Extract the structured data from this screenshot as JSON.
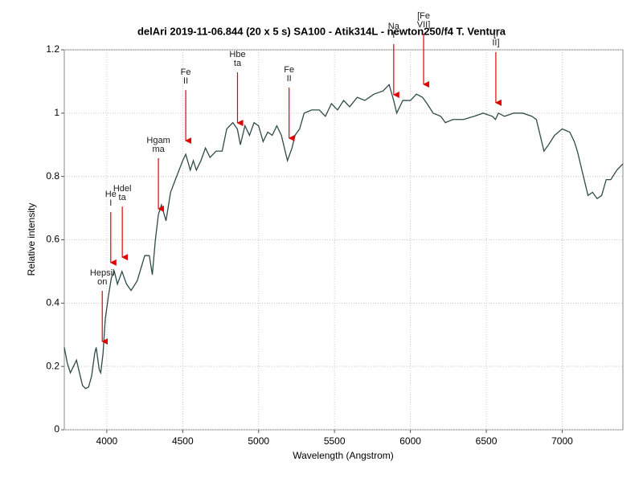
{
  "chart_data": {
    "type": "line",
    "title": "delAri   2019-11-06.844   (20 x 5 s)  SA100 - Atik314L - newton250/f4 T. Ventura",
    "x_label": "Wavelength (Angstrom)",
    "y_label": "Relative intensity",
    "xlim": [
      3720,
      7400
    ],
    "ylim": [
      0,
      1.2
    ],
    "xticks": [
      4000,
      4500,
      5000,
      5500,
      6000,
      6500,
      7000
    ],
    "yticks": [
      0,
      0.2,
      0.4,
      0.6,
      0.8,
      1,
      1.2
    ],
    "grid": true,
    "series": [
      {
        "color": "#2f4a48",
        "x": [
          3720,
          3740,
          3760,
          3780,
          3800,
          3820,
          3840,
          3860,
          3880,
          3900,
          3920,
          3930,
          3950,
          3960,
          3975,
          3990,
          4010,
          4030,
          4050,
          4070,
          4100,
          4130,
          4160,
          4200,
          4250,
          4280,
          4300,
          4320,
          4340,
          4360,
          4390,
          4420,
          4460,
          4500,
          4520,
          4550,
          4570,
          4590,
          4620,
          4650,
          4680,
          4720,
          4760,
          4790,
          4830,
          4860,
          4880,
          4910,
          4940,
          4970,
          5000,
          5030,
          5060,
          5090,
          5120,
          5150,
          5170,
          5190,
          5220,
          5240,
          5270,
          5300,
          5350,
          5400,
          5440,
          5480,
          5520,
          5560,
          5600,
          5650,
          5700,
          5760,
          5820,
          5860,
          5890,
          5910,
          5950,
          6000,
          6040,
          6080,
          6110,
          6150,
          6200,
          6230,
          6280,
          6350,
          6420,
          6480,
          6540,
          6560,
          6580,
          6620,
          6680,
          6740,
          6800,
          6830,
          6860,
          6880,
          6910,
          6950,
          7000,
          7050,
          7080,
          7100,
          7140,
          7170,
          7200,
          7230,
          7260,
          7290,
          7320,
          7360,
          7400
        ],
        "values": [
          0.26,
          0.21,
          0.18,
          0.2,
          0.22,
          0.18,
          0.14,
          0.13,
          0.135,
          0.17,
          0.24,
          0.26,
          0.19,
          0.18,
          0.24,
          0.35,
          0.42,
          0.48,
          0.5,
          0.46,
          0.5,
          0.46,
          0.44,
          0.47,
          0.55,
          0.55,
          0.49,
          0.6,
          0.68,
          0.71,
          0.66,
          0.75,
          0.8,
          0.85,
          0.87,
          0.82,
          0.85,
          0.82,
          0.85,
          0.89,
          0.86,
          0.88,
          0.88,
          0.95,
          0.97,
          0.95,
          0.9,
          0.96,
          0.93,
          0.97,
          0.96,
          0.91,
          0.94,
          0.93,
          0.96,
          0.93,
          0.89,
          0.85,
          0.89,
          0.93,
          0.95,
          1.0,
          1.01,
          1.01,
          0.99,
          1.03,
          1.01,
          1.04,
          1.02,
          1.05,
          1.04,
          1.06,
          1.07,
          1.09,
          1.04,
          1.0,
          1.04,
          1.04,
          1.06,
          1.05,
          1.03,
          1.0,
          0.99,
          0.97,
          0.98,
          0.98,
          0.99,
          1.0,
          0.99,
          0.98,
          1.0,
          0.99,
          1.0,
          1.0,
          0.99,
          0.98,
          0.92,
          0.88,
          0.9,
          0.93,
          0.95,
          0.94,
          0.91,
          0.88,
          0.8,
          0.74,
          0.75,
          0.73,
          0.74,
          0.79,
          0.79,
          0.82,
          0.84
        ]
      }
    ],
    "annotations": [
      {
        "lines": [
          "Hepsil",
          "on"
        ],
        "x": 3970,
        "y": 0.279
      },
      {
        "lines": [
          "He",
          "I"
        ],
        "x": 4026,
        "y": 0.528
      },
      {
        "lines": [
          "Hdel",
          "ta"
        ],
        "x": 4102,
        "y": 0.545
      },
      {
        "lines": [
          "Hgam",
          "ma"
        ],
        "x": 4340,
        "y": 0.698
      },
      {
        "lines": [
          "Fe",
          "II"
        ],
        "x": 4520,
        "y": 0.913
      },
      {
        "lines": [
          "Hbe",
          "ta"
        ],
        "x": 4861,
        "y": 0.969
      },
      {
        "lines": [
          "Fe",
          "II"
        ],
        "x": 5201,
        "y": 0.921
      },
      {
        "lines": [
          "Na",
          "I"
        ],
        "x": 5890,
        "y": 1.058
      },
      {
        "lines": [
          "[Fe",
          "VII]"
        ],
        "x": 6087,
        "y": 1.091
      },
      {
        "lines": [
          "[I",
          "II]"
        ],
        "x": 6563,
        "y": 1.033
      }
    ]
  }
}
